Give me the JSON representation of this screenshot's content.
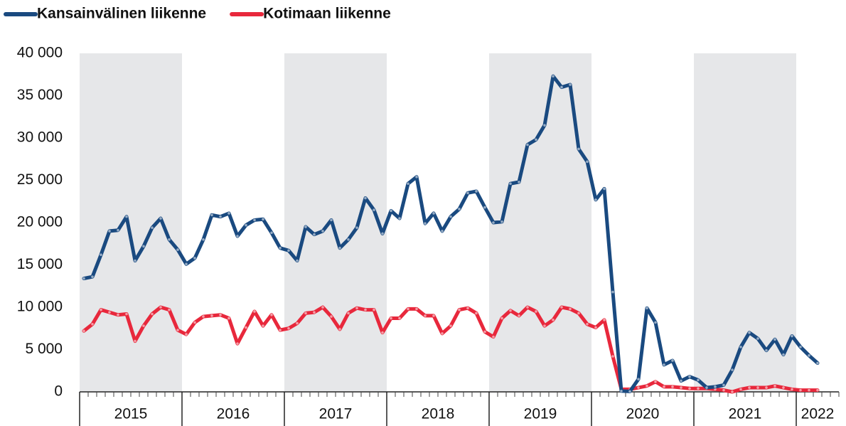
{
  "chart_data": {
    "type": "line",
    "x": [
      "2015-01",
      "2015-02",
      "2015-03",
      "2015-04",
      "2015-05",
      "2015-06",
      "2015-07",
      "2015-08",
      "2015-09",
      "2015-10",
      "2015-11",
      "2015-12",
      "2016-01",
      "2016-02",
      "2016-03",
      "2016-04",
      "2016-05",
      "2016-06",
      "2016-07",
      "2016-08",
      "2016-09",
      "2016-10",
      "2016-11",
      "2016-12",
      "2017-01",
      "2017-02",
      "2017-03",
      "2017-04",
      "2017-05",
      "2017-06",
      "2017-07",
      "2017-08",
      "2017-09",
      "2017-10",
      "2017-11",
      "2017-12",
      "2018-01",
      "2018-02",
      "2018-03",
      "2018-04",
      "2018-05",
      "2018-06",
      "2018-07",
      "2018-08",
      "2018-09",
      "2018-10",
      "2018-11",
      "2018-12",
      "2019-01",
      "2019-02",
      "2019-03",
      "2019-04",
      "2019-05",
      "2019-06",
      "2019-07",
      "2019-08",
      "2019-09",
      "2019-10",
      "2019-11",
      "2019-12",
      "2020-01",
      "2020-02",
      "2020-03",
      "2020-04",
      "2020-05",
      "2020-06",
      "2020-07",
      "2020-08",
      "2020-09",
      "2020-10",
      "2020-11",
      "2020-12",
      "2021-01",
      "2021-02",
      "2021-03",
      "2021-04",
      "2021-05",
      "2021-06",
      "2021-07",
      "2021-08",
      "2021-09",
      "2021-10",
      "2021-11",
      "2021-12",
      "2022-01",
      "2022-02",
      "2022-03"
    ],
    "series": [
      {
        "name": "Kansainvälinen liikenne",
        "color": "#1a4a80",
        "values": [
          13400,
          13600,
          16200,
          19000,
          19100,
          20700,
          15500,
          17200,
          19400,
          20500,
          18000,
          16800,
          15100,
          15800,
          18000,
          20900,
          20700,
          21100,
          18400,
          19700,
          20300,
          20400,
          18800,
          17000,
          16700,
          15500,
          19500,
          18600,
          19000,
          20300,
          17000,
          18000,
          19400,
          22900,
          21500,
          18700,
          21400,
          20500,
          24600,
          25400,
          19900,
          21100,
          19000,
          20700,
          21600,
          23500,
          23700,
          21800,
          20000,
          20100,
          24600,
          24800,
          29200,
          29800,
          31500,
          37300,
          36000,
          36300,
          28700,
          27200,
          22700,
          24000,
          11800,
          100,
          50,
          1500,
          9900,
          8200,
          3200,
          3700,
          1300,
          1800,
          1400,
          500,
          600,
          800,
          2600,
          5300,
          7000,
          6300,
          4900,
          6200,
          4400,
          6600,
          5300,
          4300,
          3400
        ]
      },
      {
        "name": "Kotimaan liikenne",
        "color": "#e8283c",
        "values": [
          7200,
          8000,
          9700,
          9400,
          9100,
          9200,
          6000,
          7800,
          9200,
          10000,
          9700,
          7300,
          6800,
          8200,
          8900,
          9000,
          9100,
          8700,
          5700,
          7600,
          9500,
          7800,
          9100,
          7300,
          7500,
          8100,
          9300,
          9400,
          10000,
          8900,
          7400,
          9300,
          9900,
          9700,
          9700,
          7000,
          8700,
          8700,
          9800,
          9800,
          9000,
          9000,
          6900,
          7800,
          9700,
          9900,
          9300,
          7100,
          6500,
          8700,
          9600,
          9000,
          10000,
          9500,
          7800,
          8500,
          10000,
          9800,
          9300,
          8000,
          7600,
          8500,
          4200,
          300,
          300,
          500,
          700,
          1200,
          600,
          600,
          500,
          400,
          400,
          400,
          300,
          200,
          0,
          300,
          500,
          500,
          500,
          700,
          500,
          300,
          200,
          200,
          200
        ]
      }
    ],
    "xticks": [
      {
        "value": "2015-01",
        "label": "2015"
      },
      {
        "value": "2016-01",
        "label": "2016"
      },
      {
        "value": "2017-01",
        "label": "2017"
      },
      {
        "value": "2018-01",
        "label": "2018"
      },
      {
        "value": "2019-01",
        "label": "2019"
      },
      {
        "value": "2020-01",
        "label": "2020"
      },
      {
        "value": "2021-01",
        "label": "2021"
      },
      {
        "value": "2022-01",
        "label": "2022"
      }
    ],
    "ylim": [
      0,
      40000
    ],
    "yticks": [
      0,
      {
        "value": 5000,
        "label": "5 000"
      },
      {
        "value": 10000,
        "label": "10 000"
      },
      {
        "value": 15000,
        "label": "15 000"
      },
      {
        "value": 20000,
        "label": "20 000"
      },
      {
        "value": 25000,
        "label": "25 000"
      },
      {
        "value": 30000,
        "label": "30 000"
      },
      {
        "value": 35000,
        "label": "35 000"
      },
      {
        "value": 40000,
        "label": "40 000"
      }
    ],
    "legend": "top-left"
  }
}
